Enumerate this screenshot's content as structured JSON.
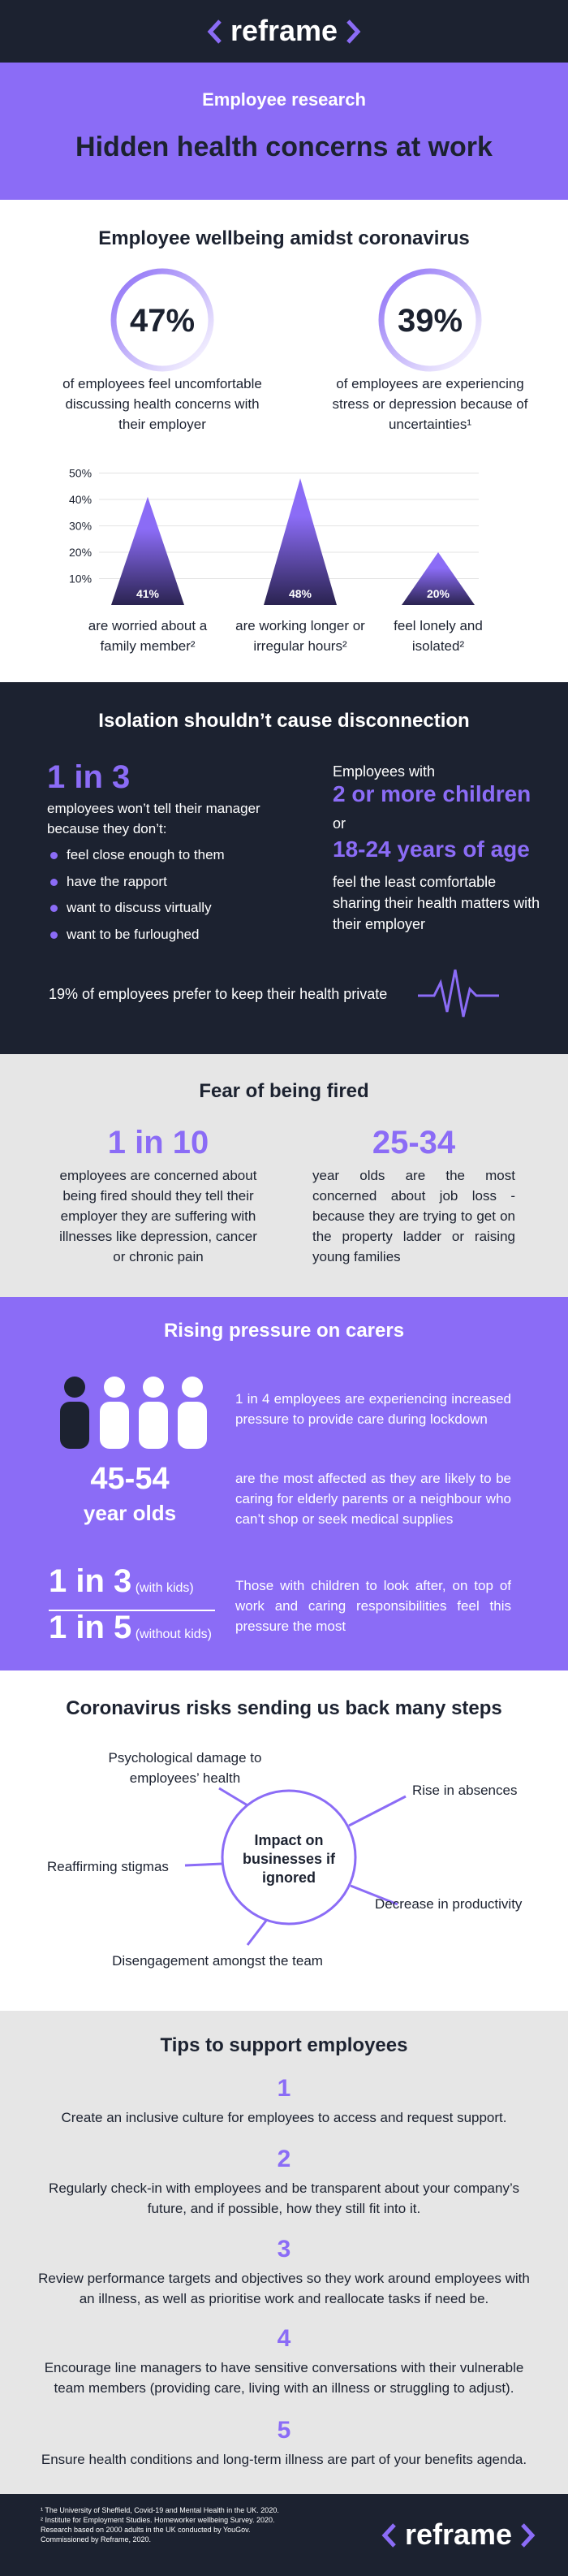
{
  "header": {
    "logo": "reframe"
  },
  "hero": {
    "kicker": "Employee research",
    "title": "Hidden health concerns at work"
  },
  "wellbeing": {
    "title": "Employee wellbeing amidst coronavirus",
    "stats": [
      {
        "value": "47%",
        "text": "of employees feel uncomfortable discussing health concerns with their employer"
      },
      {
        "value": "39%",
        "text": "of employees are experiencing stress or depression because of uncertainties¹"
      }
    ],
    "chart": {
      "type": "bar",
      "categories": [
        "are worried about a family member²",
        "are working longer or irregular hours²",
        "feel lonely and isolated²"
      ],
      "values": [
        41,
        48,
        20
      ],
      "value_labels": [
        "41%",
        "48%",
        "20%"
      ],
      "ylim": [
        0,
        50
      ],
      "yticks": [
        {
          "value": 10,
          "label": "10%"
        },
        {
          "value": 20,
          "label": "20%"
        },
        {
          "value": 30,
          "label": "30%"
        },
        {
          "value": 40,
          "label": "40%"
        },
        {
          "value": 50,
          "label": "50%"
        }
      ],
      "grid": true,
      "color": "#8b6cf6"
    }
  },
  "isolation": {
    "title": "Isolation shouldn’t cause disconnection",
    "stat": "1 in 3",
    "lead": "employees won’t tell their manager because they don’t:",
    "list": [
      "feel close enough to them",
      "have the rapport",
      "want to discuss virtually",
      "want to be furloughed"
    ],
    "right_intro": "Employees with",
    "right_highlight_1": "2 or more children",
    "right_or": "or",
    "right_highlight_2": "18-24 years of age",
    "right_text": "feel the least comfortable sharing their health matters with their employer",
    "footer": "19% of employees prefer to keep their health private"
  },
  "fear": {
    "title": "Fear of being fired",
    "stats": [
      {
        "value": "1 in 10",
        "text": "employees are concerned about being fired should they tell their employer they are suffering with illnesses like depression, cancer or chronic pain"
      },
      {
        "value": "25-34",
        "text": "year olds are the most concerned about job loss - because they are trying to get on the property ladder or raising young families"
      }
    ]
  },
  "carers": {
    "title": "Rising pressure on carers",
    "stat_text": "1 in 4 employees are experiencing increased pressure to provide care during lockdown",
    "age": "45-54",
    "age_sub": "year olds",
    "age_text": "are the most affected as they are likely to be caring for elderly parents or a neighbour who can’t shop  or seek medical supplies",
    "kids": [
      {
        "value": "1 in 3",
        "note": "(with kids)"
      },
      {
        "value": "1 in 5",
        "note": "(without kids)"
      }
    ],
    "kids_text": "Those with children to look after, on top of work and caring responsibilities feel this pressure the most"
  },
  "risks": {
    "title": "Coronavirus risks sending us back many steps",
    "center": "Impact on businesses if ignored",
    "items": [
      "Psychological damage to employees’ health",
      "Rise in absences",
      "Reaffirming stigmas",
      "Decrease in productivity",
      "Disengagement amongst the team"
    ]
  },
  "tips": {
    "title": "Tips to support employees",
    "items": [
      {
        "number": "1",
        "text": "Create an inclusive culture for employees to access and request support."
      },
      {
        "number": "2",
        "text": "Regularly check-in with employees and be transparent about your company’s future, and if possible, how they still fit into it."
      },
      {
        "number": "3",
        "text": "Review performance targets and objectives so they work around employees with an illness, as well as prioritise work and reallocate tasks if need be."
      },
      {
        "number": "4",
        "text": "Encourage line managers to have sensitive conversations with their vulnerable team members (providing care, living with an illness or struggling to adjust)."
      },
      {
        "number": "5",
        "text": "Ensure health conditions and long-term illness are part of your benefits agenda."
      }
    ]
  },
  "footer": {
    "notes": [
      "¹ The University of Sheffield, Covid-19 and Mental Health in the UK. 2020.",
      "² Institute for Employment Studies. Homeworker wellbeing Survey. 2020.",
      "Research based on 2000 adults in the UK conducted by YouGov.",
      "Commissioned by Reframe, 2020."
    ],
    "logo": "reframe"
  }
}
